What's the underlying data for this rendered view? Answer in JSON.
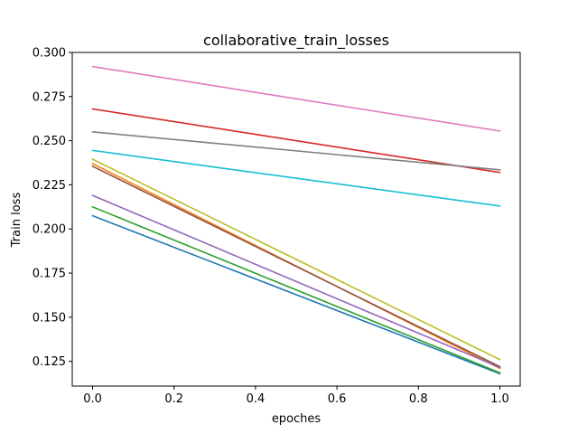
{
  "chart_data": {
    "type": "line",
    "title": "collaborative_train_losses",
    "xlabel": "epoches",
    "ylabel": "Train loss",
    "xlim": [
      -0.05,
      1.05
    ],
    "ylim": [
      0.111,
      0.3
    ],
    "xticks": [
      {
        "value": 0.0,
        "label": "0.0"
      },
      {
        "value": 0.2,
        "label": "0.2"
      },
      {
        "value": 0.4,
        "label": "0.4"
      },
      {
        "value": 0.6,
        "label": "0.6"
      },
      {
        "value": 0.8,
        "label": "0.8"
      },
      {
        "value": 1.0,
        "label": "1.0"
      }
    ],
    "yticks": [
      {
        "value": 0.125,
        "label": "0.125"
      },
      {
        "value": 0.15,
        "label": "0.150"
      },
      {
        "value": 0.175,
        "label": "0.175"
      },
      {
        "value": 0.2,
        "label": "0.200"
      },
      {
        "value": 0.225,
        "label": "0.225"
      },
      {
        "value": 0.25,
        "label": "0.250"
      },
      {
        "value": 0.275,
        "label": "0.275"
      },
      {
        "value": 0.3,
        "label": "0.300"
      }
    ],
    "x": [
      0,
      1
    ],
    "series": [
      {
        "name": "series-blue",
        "color": "#1f77b4",
        "values": [
          0.2075,
          0.118
        ]
      },
      {
        "name": "series-orange",
        "color": "#ff7f0e",
        "values": [
          0.237,
          0.121
        ]
      },
      {
        "name": "series-green",
        "color": "#2ca02c",
        "values": [
          0.2125,
          0.1185
        ]
      },
      {
        "name": "series-red",
        "color": "#d62728",
        "values": [
          0.268,
          0.232
        ]
      },
      {
        "name": "series-purple",
        "color": "#9467bd",
        "values": [
          0.219,
          0.1215
        ]
      },
      {
        "name": "series-brown",
        "color": "#8c564b",
        "values": [
          0.2355,
          0.122
        ]
      },
      {
        "name": "series-pink",
        "color": "#e377c2",
        "values": [
          0.292,
          0.2555
        ]
      },
      {
        "name": "series-gray",
        "color": "#7f7f7f",
        "values": [
          0.255,
          0.2335
        ]
      },
      {
        "name": "series-olive",
        "color": "#bcbd22",
        "values": [
          0.2395,
          0.126
        ]
      },
      {
        "name": "series-cyan",
        "color": "#17becf",
        "values": [
          0.2445,
          0.213
        ]
      }
    ]
  }
}
